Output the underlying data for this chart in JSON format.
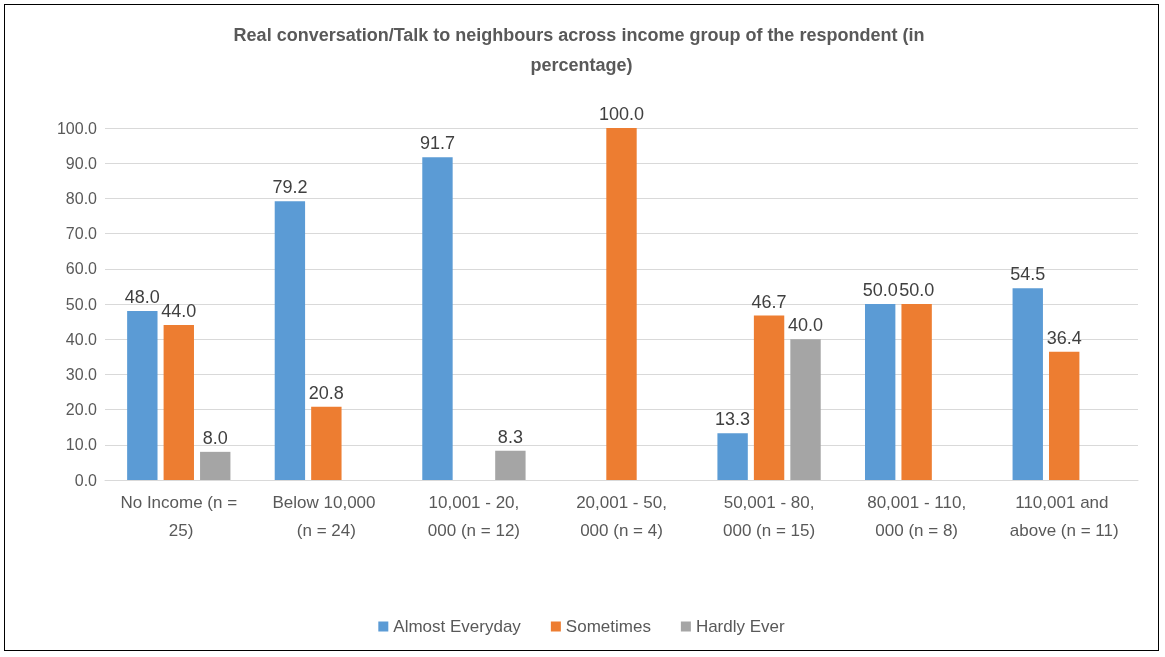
{
  "chart_data": {
    "type": "bar",
    "title": "Real conversation/Talk to neighbours across income group of the respondent (in percentage)",
    "categories": [
      "No Income (n = 25)",
      "Below 10,000 (n = 24)",
      "10,001 - 20,000 (n = 12)",
      "20,001 - 50,000 (n = 4)",
      "50,001 - 80,000 (n = 15)",
      "80,001 - 110,000 (n = 8)",
      "110,001 and above (n = 11)"
    ],
    "series": [
      {
        "name": "Almost Everyday",
        "color": "#5b9bd5",
        "values": [
          48.0,
          79.2,
          91.7,
          null,
          13.3,
          50.0,
          54.5
        ],
        "value_labels": [
          "48.0",
          "79.2",
          "91.7",
          null,
          "13.3",
          "50.0",
          "54.5"
        ]
      },
      {
        "name": "Sometimes",
        "color": "#ed7d31",
        "values": [
          44.0,
          20.8,
          null,
          100.0,
          46.7,
          50.0,
          36.4
        ],
        "value_labels": [
          "44.0",
          "20.8",
          null,
          "100.0",
          "46.7",
          "50.0",
          "36.4"
        ]
      },
      {
        "name": "Hardly Ever",
        "color": "#a5a5a5",
        "values": [
          8.0,
          null,
          8.3,
          null,
          40.0,
          null,
          null
        ],
        "value_labels": [
          "8.0",
          null,
          "8.3",
          null,
          "40.0",
          null,
          null
        ]
      }
    ],
    "ylim": [
      0,
      100
    ],
    "yticks": [
      {
        "value": 0,
        "label": "0.0"
      },
      {
        "value": 10,
        "label": "10.0"
      },
      {
        "value": 20,
        "label": "20.0"
      },
      {
        "value": 30,
        "label": "30.0"
      },
      {
        "value": 40,
        "label": "40.0"
      },
      {
        "value": 50,
        "label": "50.0"
      },
      {
        "value": 60,
        "label": "60.0"
      },
      {
        "value": 70,
        "label": "70.0"
      },
      {
        "value": 80,
        "label": "80.0"
      },
      {
        "value": 90,
        "label": "90.0"
      },
      {
        "value": 100,
        "label": "100.0"
      }
    ],
    "grid": "y",
    "legend": "bottom"
  }
}
